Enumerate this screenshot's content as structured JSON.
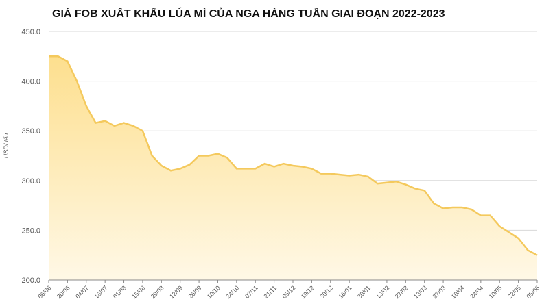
{
  "chart_data": {
    "type": "area",
    "title": "GIÁ FOB XUẤT KHẨU LÚA MÌ CỦA NGA HÀNG TUẦN GIAI ĐOẠN 2022-2023",
    "y_label": "USD/ tấn",
    "color": "#f4c95d",
    "grid": true,
    "ylim": [
      200,
      450
    ],
    "yticks": [
      {
        "value": 200,
        "label": "200.0"
      },
      {
        "value": 250,
        "label": "250.0"
      },
      {
        "value": 300,
        "label": "300.0"
      },
      {
        "value": 350,
        "label": "350.0"
      },
      {
        "value": 400,
        "label": "400.0"
      },
      {
        "value": 450,
        "label": "450.0"
      }
    ],
    "categories": [
      "06/06",
      null,
      "20/06",
      null,
      "04/07",
      null,
      "18/07",
      null,
      "01/08",
      null,
      "15/08",
      null,
      "29/08",
      null,
      "12/09",
      null,
      "26/09",
      null,
      "10/10",
      null,
      "24/10",
      null,
      "07/11",
      null,
      "21/11",
      null,
      "05/12",
      null,
      "19/12",
      null,
      "30/12",
      null,
      "16/01",
      null,
      "30/01",
      null,
      "13/02",
      null,
      "27/02",
      null,
      "13/03",
      null,
      "27/03",
      null,
      "10/04",
      null,
      "24/04",
      null,
      "10/05",
      null,
      "22/05",
      null,
      "05/06"
    ],
    "values": [
      425,
      425,
      420,
      400,
      375,
      358,
      360,
      355,
      358,
      355,
      350,
      325,
      315,
      310,
      312,
      316,
      325,
      325,
      327,
      323,
      312,
      312,
      312,
      317,
      314,
      317,
      315,
      314,
      312,
      307,
      307,
      306,
      305,
      306,
      304,
      297,
      298,
      299,
      296,
      292,
      290,
      277,
      272,
      273,
      273,
      271,
      265,
      265,
      254,
      248,
      242,
      230,
      225
    ]
  }
}
